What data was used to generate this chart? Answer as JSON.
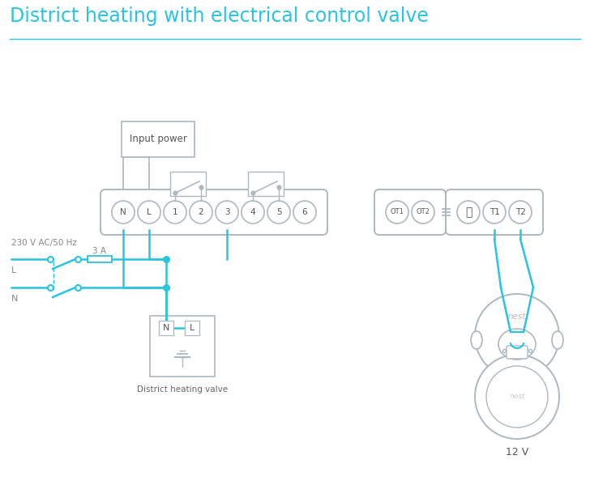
{
  "title": "District heating with electrical control valve",
  "title_color": "#29c4e0",
  "title_fontsize": 17,
  "bg_color": "#ffffff",
  "wire_color": "#29c4e0",
  "gray_color": "#adb8c0",
  "input_power_label": "Input power",
  "district_heating_label": "District heating valve",
  "voltage_label": "230 V AC/50 Hz",
  "fuse_label": "3 A",
  "nest_label": "12 V",
  "terminal_labels_main": [
    "N",
    "L",
    "1",
    "2",
    "3",
    "4",
    "5",
    "6"
  ],
  "terminal_labels_ot": [
    "OT1",
    "OT2"
  ],
  "terminal_labels_t": [
    "⏚",
    "T1",
    "T2"
  ],
  "L_label": "L",
  "N_label": "N"
}
